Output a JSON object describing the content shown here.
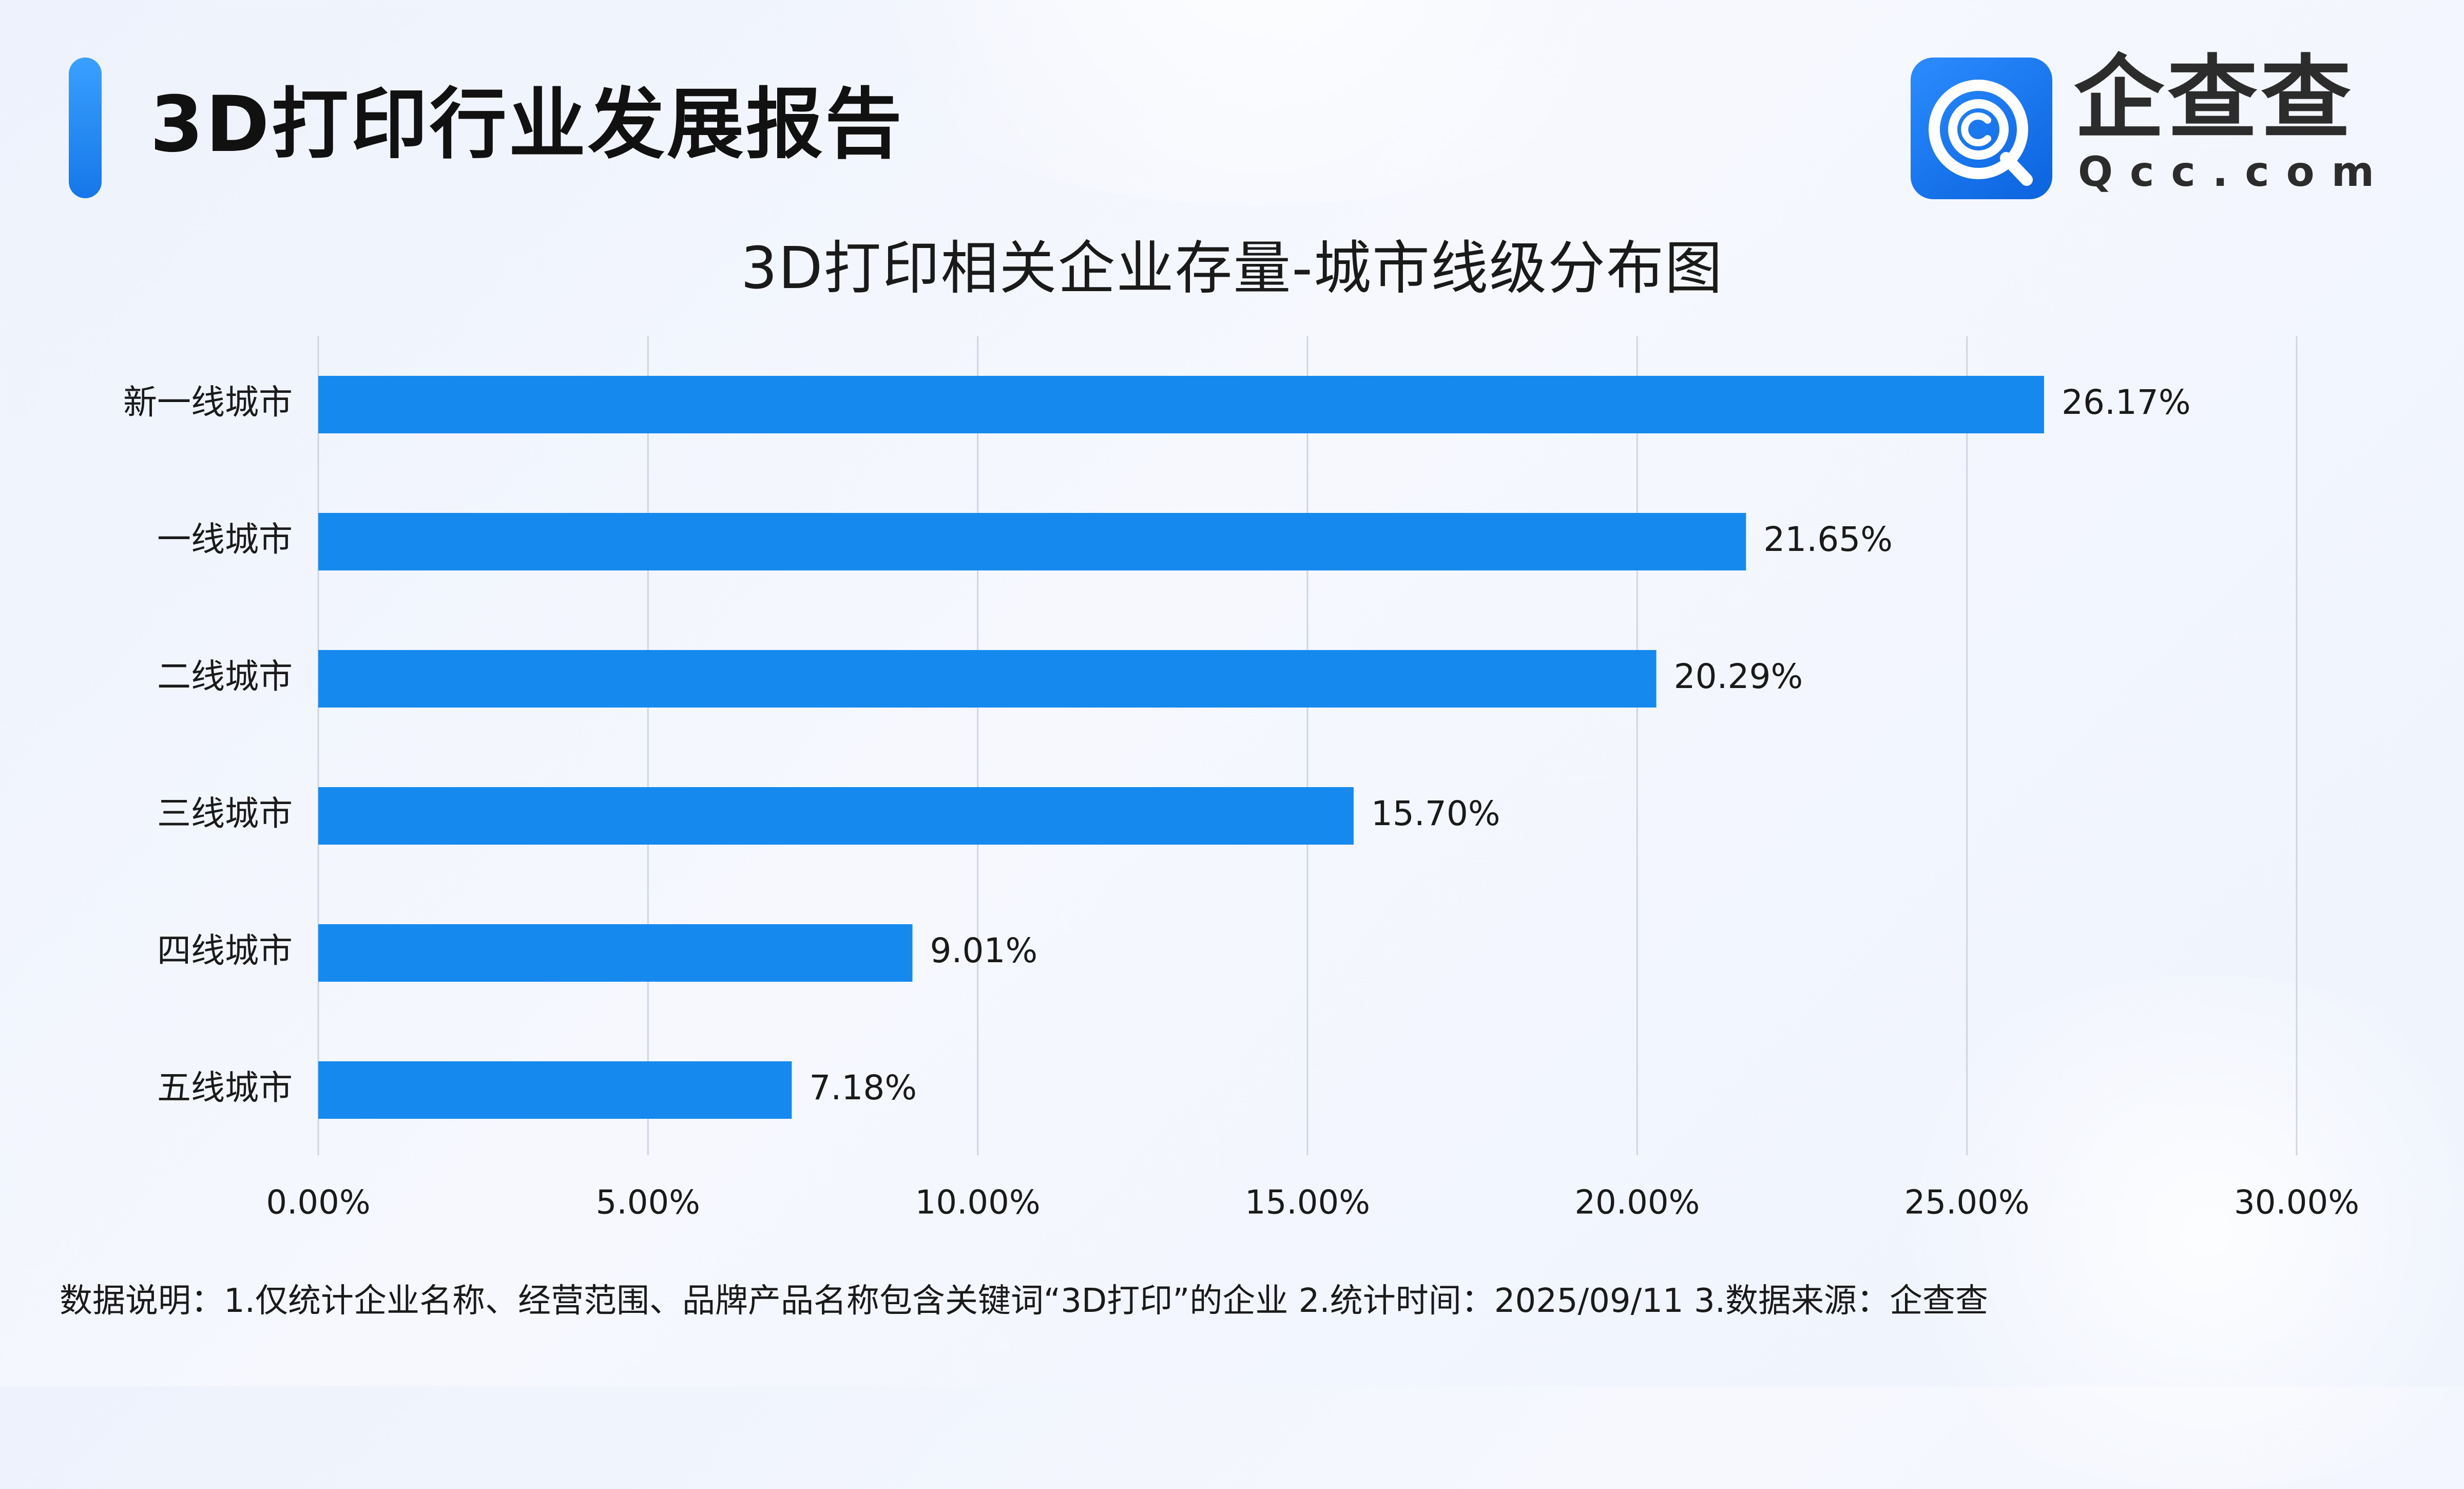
{
  "header": {
    "title": "3D打印行业发展报告"
  },
  "logo": {
    "name": "企查查",
    "domain": "Qcc.com",
    "brand_color": "#1a80f0"
  },
  "chart_data": {
    "type": "bar",
    "orientation": "horizontal",
    "title": "3D打印相关企业存量-城市线级分布图",
    "categories": [
      "新一线城市",
      "一线城市",
      "二线城市",
      "三线城市",
      "四线城市",
      "五线城市"
    ],
    "values": [
      26.17,
      21.65,
      20.29,
      15.7,
      9.01,
      7.18
    ],
    "value_labels": [
      "26.17%",
      "21.65%",
      "20.29%",
      "15.70%",
      "9.01%",
      "7.18%"
    ],
    "unit": "%",
    "xlim": [
      0,
      30
    ],
    "xticks": [
      0,
      5,
      10,
      15,
      20,
      25,
      30
    ],
    "xtick_labels": [
      "0.00%",
      "5.00%",
      "10.00%",
      "15.00%",
      "20.00%",
      "25.00%",
      "30.00%"
    ],
    "grid": "vertical",
    "legend": "none",
    "bar_color": "#1589ee",
    "gridline_color": "#cfd6e2"
  },
  "footnote": "数据说明：1.仅统计企业名称、经营范围、品牌产品名称包含关键词“3D打印”的企业   2.统计时间：2025/09/11    3.数据来源：企查查"
}
